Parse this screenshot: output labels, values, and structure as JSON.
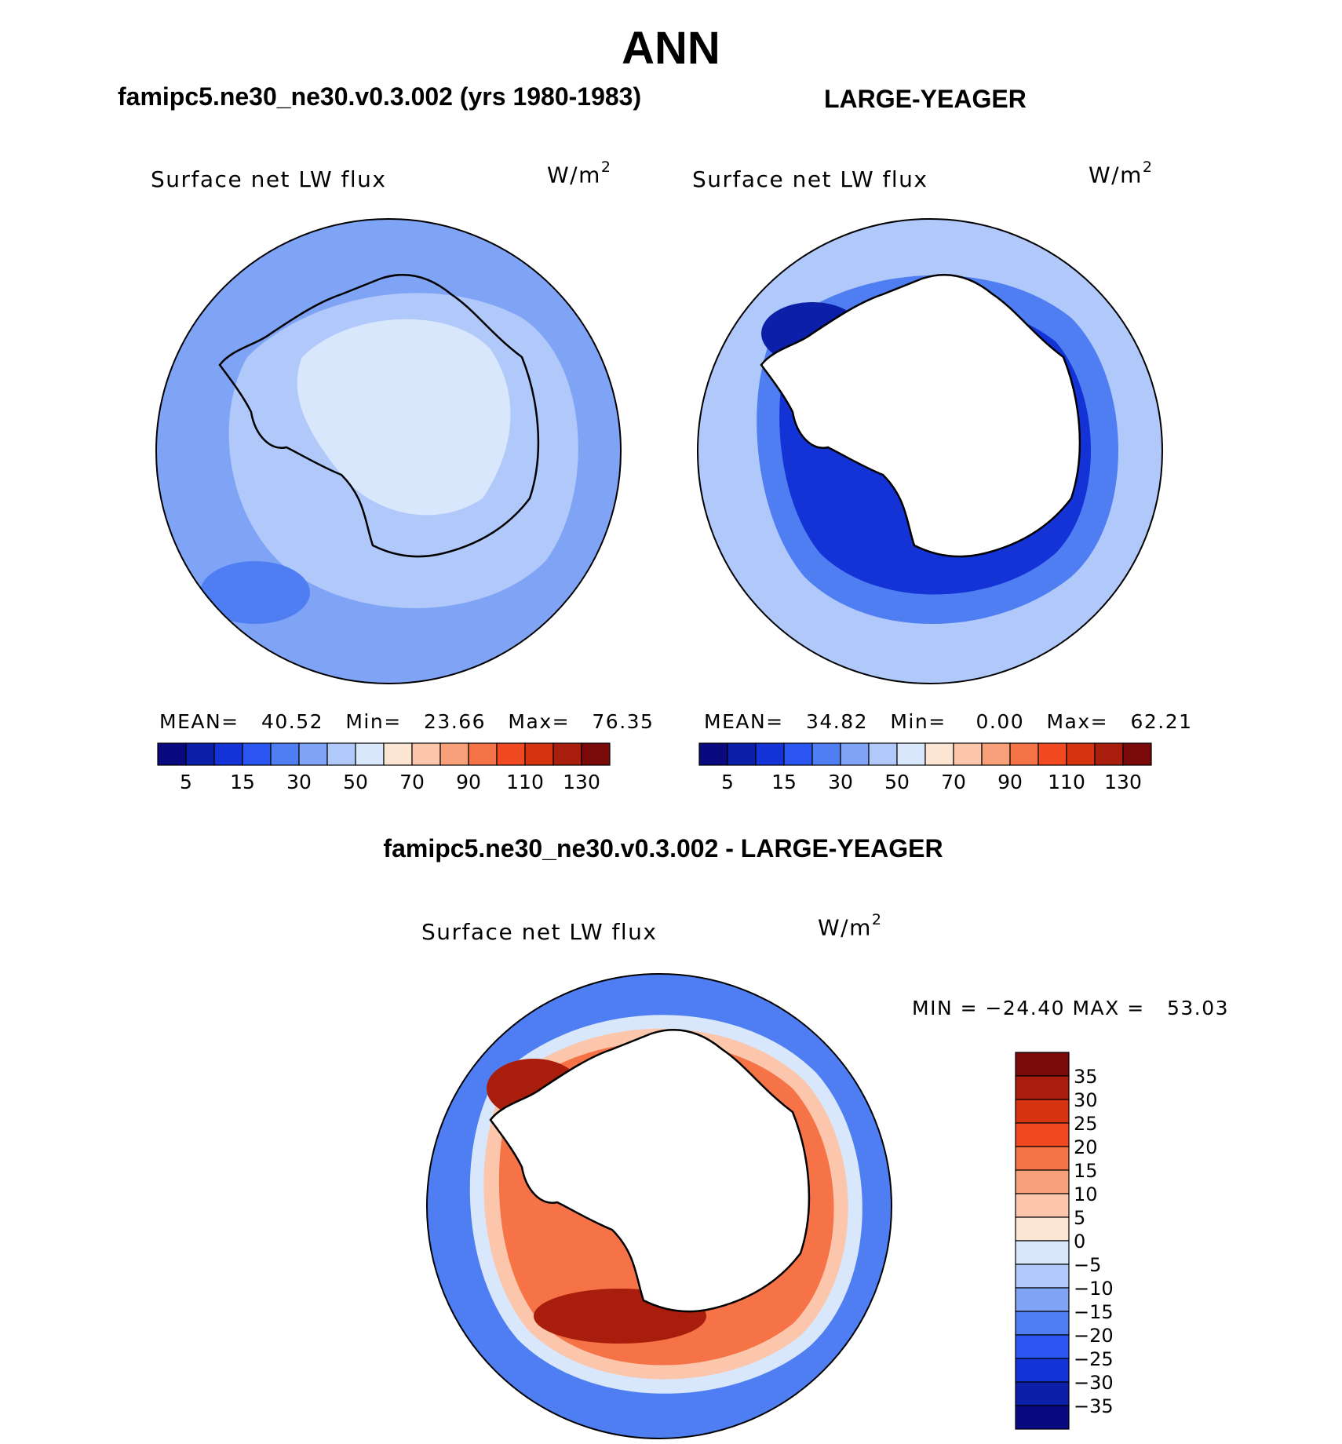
{
  "title": "ANN",
  "panels": [
    {
      "heading": "famipc5.ne30_ne30.v0.3.002 (yrs 1980-1983)",
      "variable_label": "Surface net LW flux",
      "units": "W/m",
      "units_exp": "2",
      "stats": "MEAN=   40.52   Min=   23.66   Max=   76.35"
    },
    {
      "heading": "LARGE-YEAGER",
      "variable_label": "Surface net LW flux",
      "units": "W/m",
      "units_exp": "2",
      "stats": "MEAN=   34.82   Min=    0.00   Max=   62.21"
    },
    {
      "heading": "famipc5.ne30_ne30.v0.3.002 - LARGE-YEAGER",
      "variable_label": "Surface net LW flux",
      "units": "W/m",
      "units_exp": "2",
      "stats": "MIN = −24.40 MAX =   53.03"
    }
  ],
  "colorbar_abs": {
    "colors": [
      "#0a0a80",
      "#0b1fa8",
      "#1433d6",
      "#2a55f0",
      "#4f7ef2",
      "#7fa3f5",
      "#b0c9fa",
      "#d8e7fb",
      "#fde5d3",
      "#fbc6ab",
      "#f7a07a",
      "#f57346",
      "#f24a20",
      "#d63310",
      "#a81d0c",
      "#7a0a0a"
    ],
    "tick_labels": [
      "5",
      "15",
      "30",
      "50",
      "70",
      "90",
      "110",
      "130"
    ]
  },
  "colorbar_diff": {
    "colors": [
      "#7a0a0a",
      "#a81d0c",
      "#d63310",
      "#f24a20",
      "#f57346",
      "#f7a07a",
      "#fbc6ab",
      "#fde5d3",
      "#d8e7fb",
      "#b0c9fa",
      "#7fa3f5",
      "#4f7ef2",
      "#2a55f0",
      "#1433d6",
      "#0b1fa8",
      "#0a0a80"
    ],
    "tick_labels": [
      "35",
      "30",
      "25",
      "20",
      "15",
      "10",
      "5",
      "0",
      "−5",
      "−10",
      "−15",
      "−20",
      "−25",
      "−30",
      "−35"
    ]
  },
  "map_colors": {
    "ocean_model": "#7fa3f5",
    "ice_model": "#b0c9fa",
    "interior_model": "#d8e7fb",
    "obs_outer": "#b0c9fa",
    "obs_mid": "#4f7ef2",
    "obs_inner": "#1433d6",
    "obs_core": "#0b1fa8",
    "diff_outer": "#4f7ef2",
    "diff_ring1": "#d8e7fb",
    "diff_ring2": "#fbc6ab",
    "diff_ring3": "#f57346",
    "diff_core": "#a81d0c",
    "land_mask": "#ffffff"
  }
}
